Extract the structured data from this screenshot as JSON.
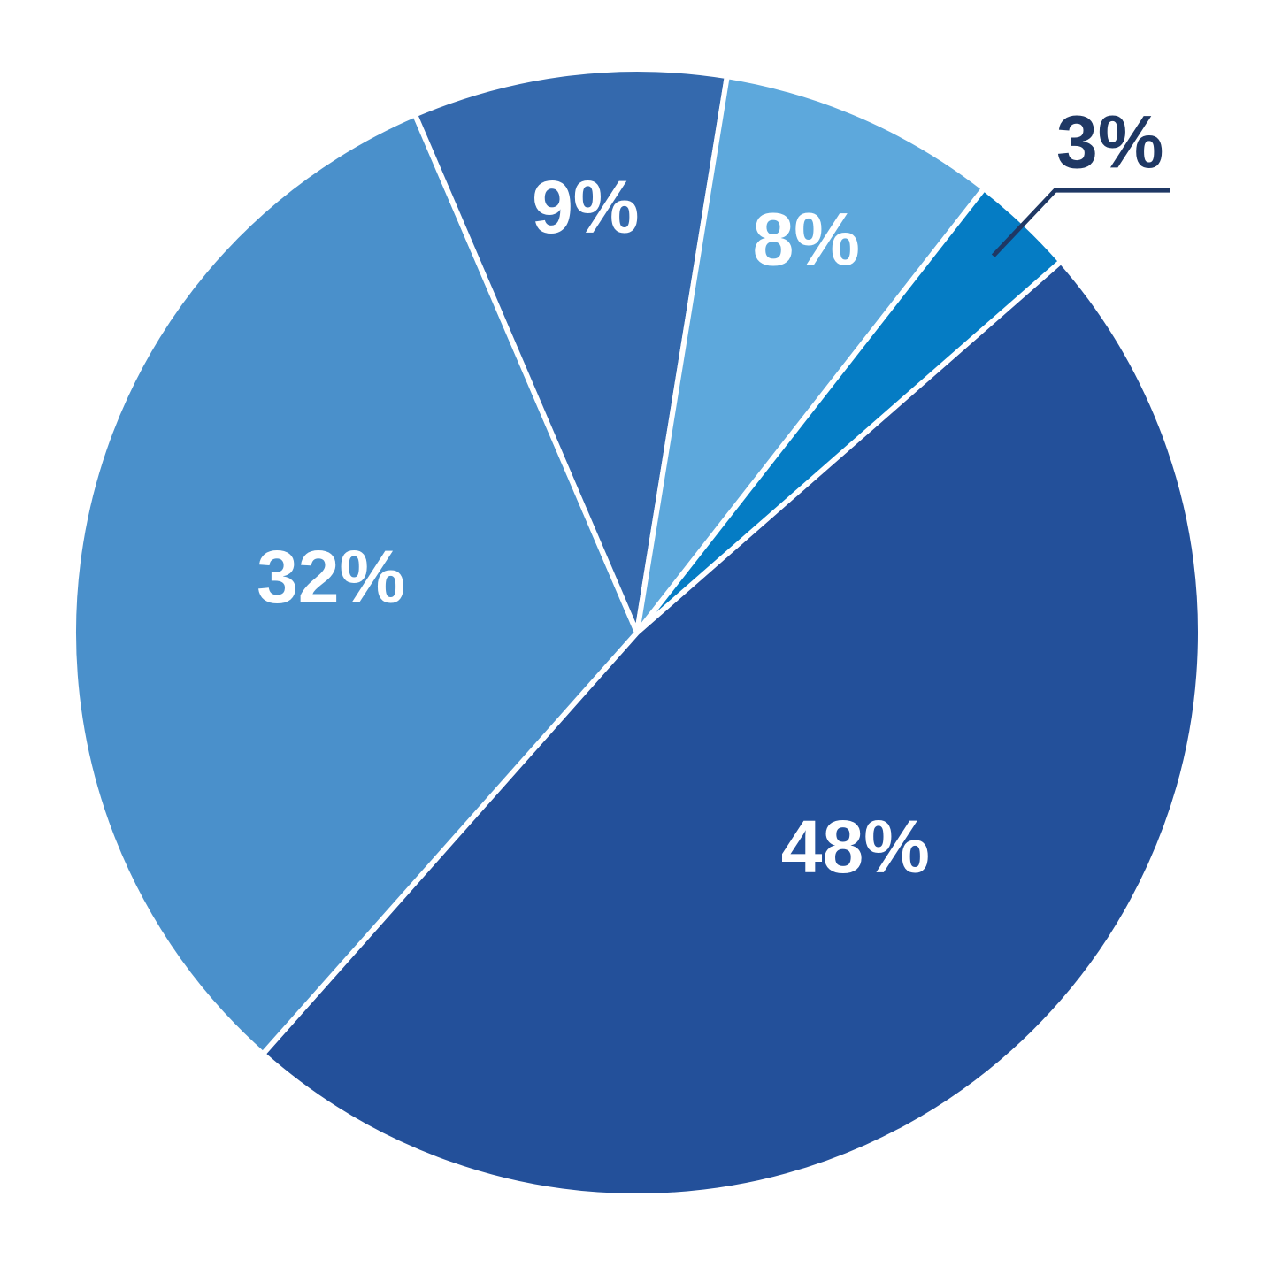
{
  "chart_data": {
    "type": "pie",
    "categories": [
      null,
      null,
      null,
      null,
      null
    ],
    "values": [
      48,
      32,
      9,
      8,
      3
    ],
    "value_labels": [
      "48%",
      "32%",
      "9%",
      "8%",
      "3%"
    ],
    "colors": [
      "#23509a",
      "#4a90cb",
      "#3469ad",
      "#5da8dc",
      "#057cc4"
    ]
  }
}
